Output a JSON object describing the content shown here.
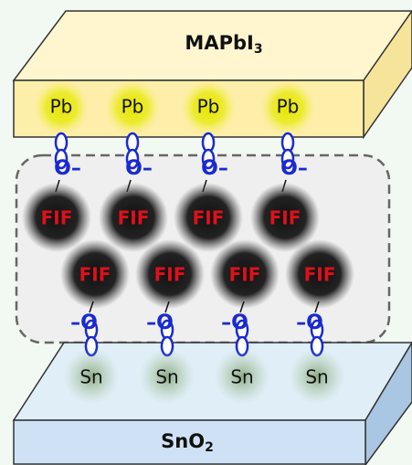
{
  "top_layer": {
    "name": "MAPbI",
    "subscript": "3"
  },
  "top_atoms": [
    "Pb",
    "Pb",
    "Pb",
    "Pb"
  ],
  "top_oxygens": [
    "O–",
    "O–",
    "O–",
    "O–"
  ],
  "fif_row1": [
    "FIF",
    "FIF",
    "FIF",
    "FIF"
  ],
  "fif_row2": [
    "FIF",
    "FIF",
    "FIF",
    "FIF"
  ],
  "bottom_oxygens": [
    "–O",
    "–O",
    "–O",
    "–O"
  ],
  "bottom_atoms": [
    "Sn",
    "Sn",
    "Sn",
    "Sn"
  ],
  "bottom_layer": {
    "name": "SnO",
    "subscript": "2"
  }
}
